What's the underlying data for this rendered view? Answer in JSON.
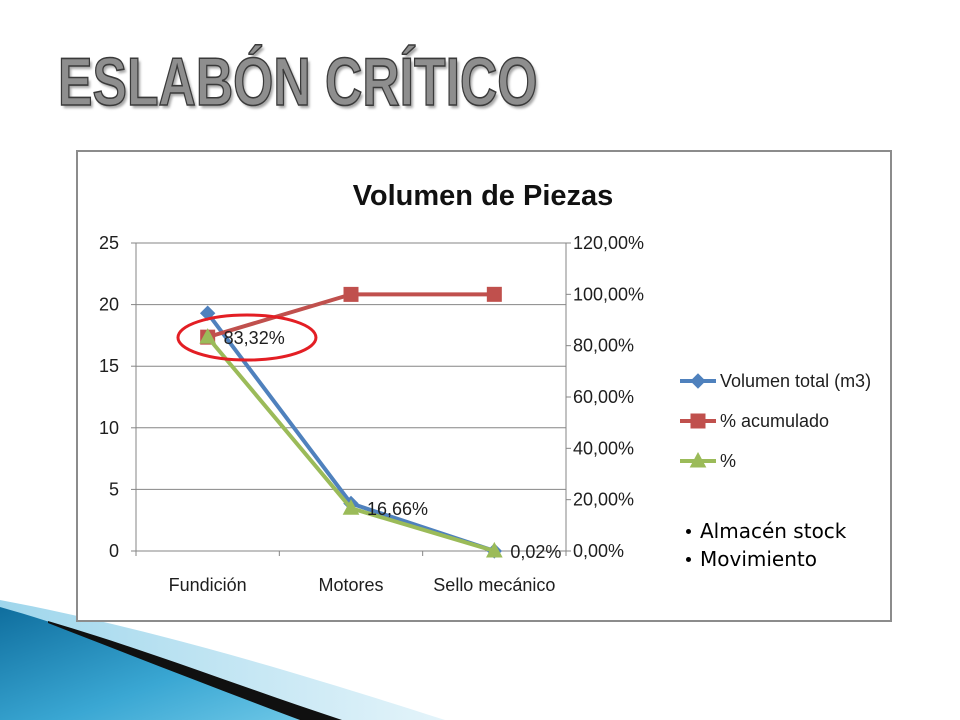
{
  "slide": {
    "title": "ESLABÓN CRÍTICO",
    "bullets": [
      "Almacén stock",
      "Movimiento"
    ]
  },
  "chart_data": {
    "type": "line",
    "title": "Volumen de Piezas",
    "categories": [
      "Fundición",
      "Motores",
      "Sello mecánico"
    ],
    "y_range": [
      0,
      25
    ],
    "y_ticks": [
      "0",
      "5",
      "10",
      "15",
      "20",
      "25"
    ],
    "y2_range": [
      0,
      120
    ],
    "y2_ticks": [
      "0,00%",
      "20,00%",
      "40,00%",
      "60,00%",
      "80,00%",
      "100,00%",
      "120,00%"
    ],
    "grid": true,
    "legend_position": "right",
    "series": [
      {
        "name": "Volumen total (m3)",
        "axis": "left",
        "values": [
          19.3,
          3.86,
          0.005
        ],
        "color": "#4f81bd",
        "marker": "diamond"
      },
      {
        "name": "% acumulado",
        "axis": "right",
        "values": [
          83.32,
          99.98,
          100
        ],
        "color": "#c0504d",
        "marker": "square"
      },
      {
        "name": "%",
        "axis": "right",
        "values": [
          83.32,
          16.66,
          0.02
        ],
        "color": "#9bbb59",
        "marker": "triangle",
        "data_labels": [
          "83,32%",
          "16,66%",
          "0,02%"
        ]
      }
    ],
    "highlight": {
      "shape": "ellipse",
      "color": "#e31e24"
    }
  }
}
